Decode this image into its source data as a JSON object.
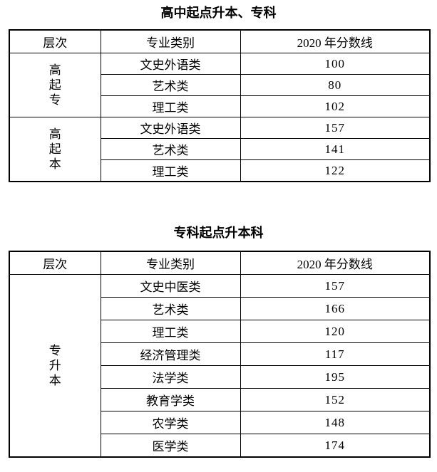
{
  "page": {
    "background": "#ffffff",
    "text_color": "#000000",
    "border_color": "#000000"
  },
  "section1": {
    "title": "高中起点升本、专科",
    "table": {
      "headers": [
        "层次",
        "专业类别",
        "2020 年分数线"
      ],
      "groups": [
        {
          "level": "高起专",
          "rows": [
            {
              "category": "文史外语类",
              "score": "100"
            },
            {
              "category": "艺术类",
              "score": "80"
            },
            {
              "category": "理工类",
              "score": "102"
            }
          ]
        },
        {
          "level": "高起本",
          "rows": [
            {
              "category": "文史外语类",
              "score": "157"
            },
            {
              "category": "艺术类",
              "score": "141"
            },
            {
              "category": "理工类",
              "score": "122"
            }
          ]
        }
      ]
    }
  },
  "section2": {
    "title": "专科起点升本科",
    "table": {
      "headers": [
        "层次",
        "专业类别",
        "2020 年分数线"
      ],
      "groups": [
        {
          "level": "专升本",
          "rows": [
            {
              "category": "文史中医类",
              "score": "157"
            },
            {
              "category": "艺术类",
              "score": "166"
            },
            {
              "category": "理工类",
              "score": "120"
            },
            {
              "category": "经济管理类",
              "score": "117"
            },
            {
              "category": "法学类",
              "score": "195"
            },
            {
              "category": "教育学类",
              "score": "152"
            },
            {
              "category": "农学类",
              "score": "148"
            },
            {
              "category": "医学类",
              "score": "174"
            }
          ]
        }
      ]
    }
  }
}
